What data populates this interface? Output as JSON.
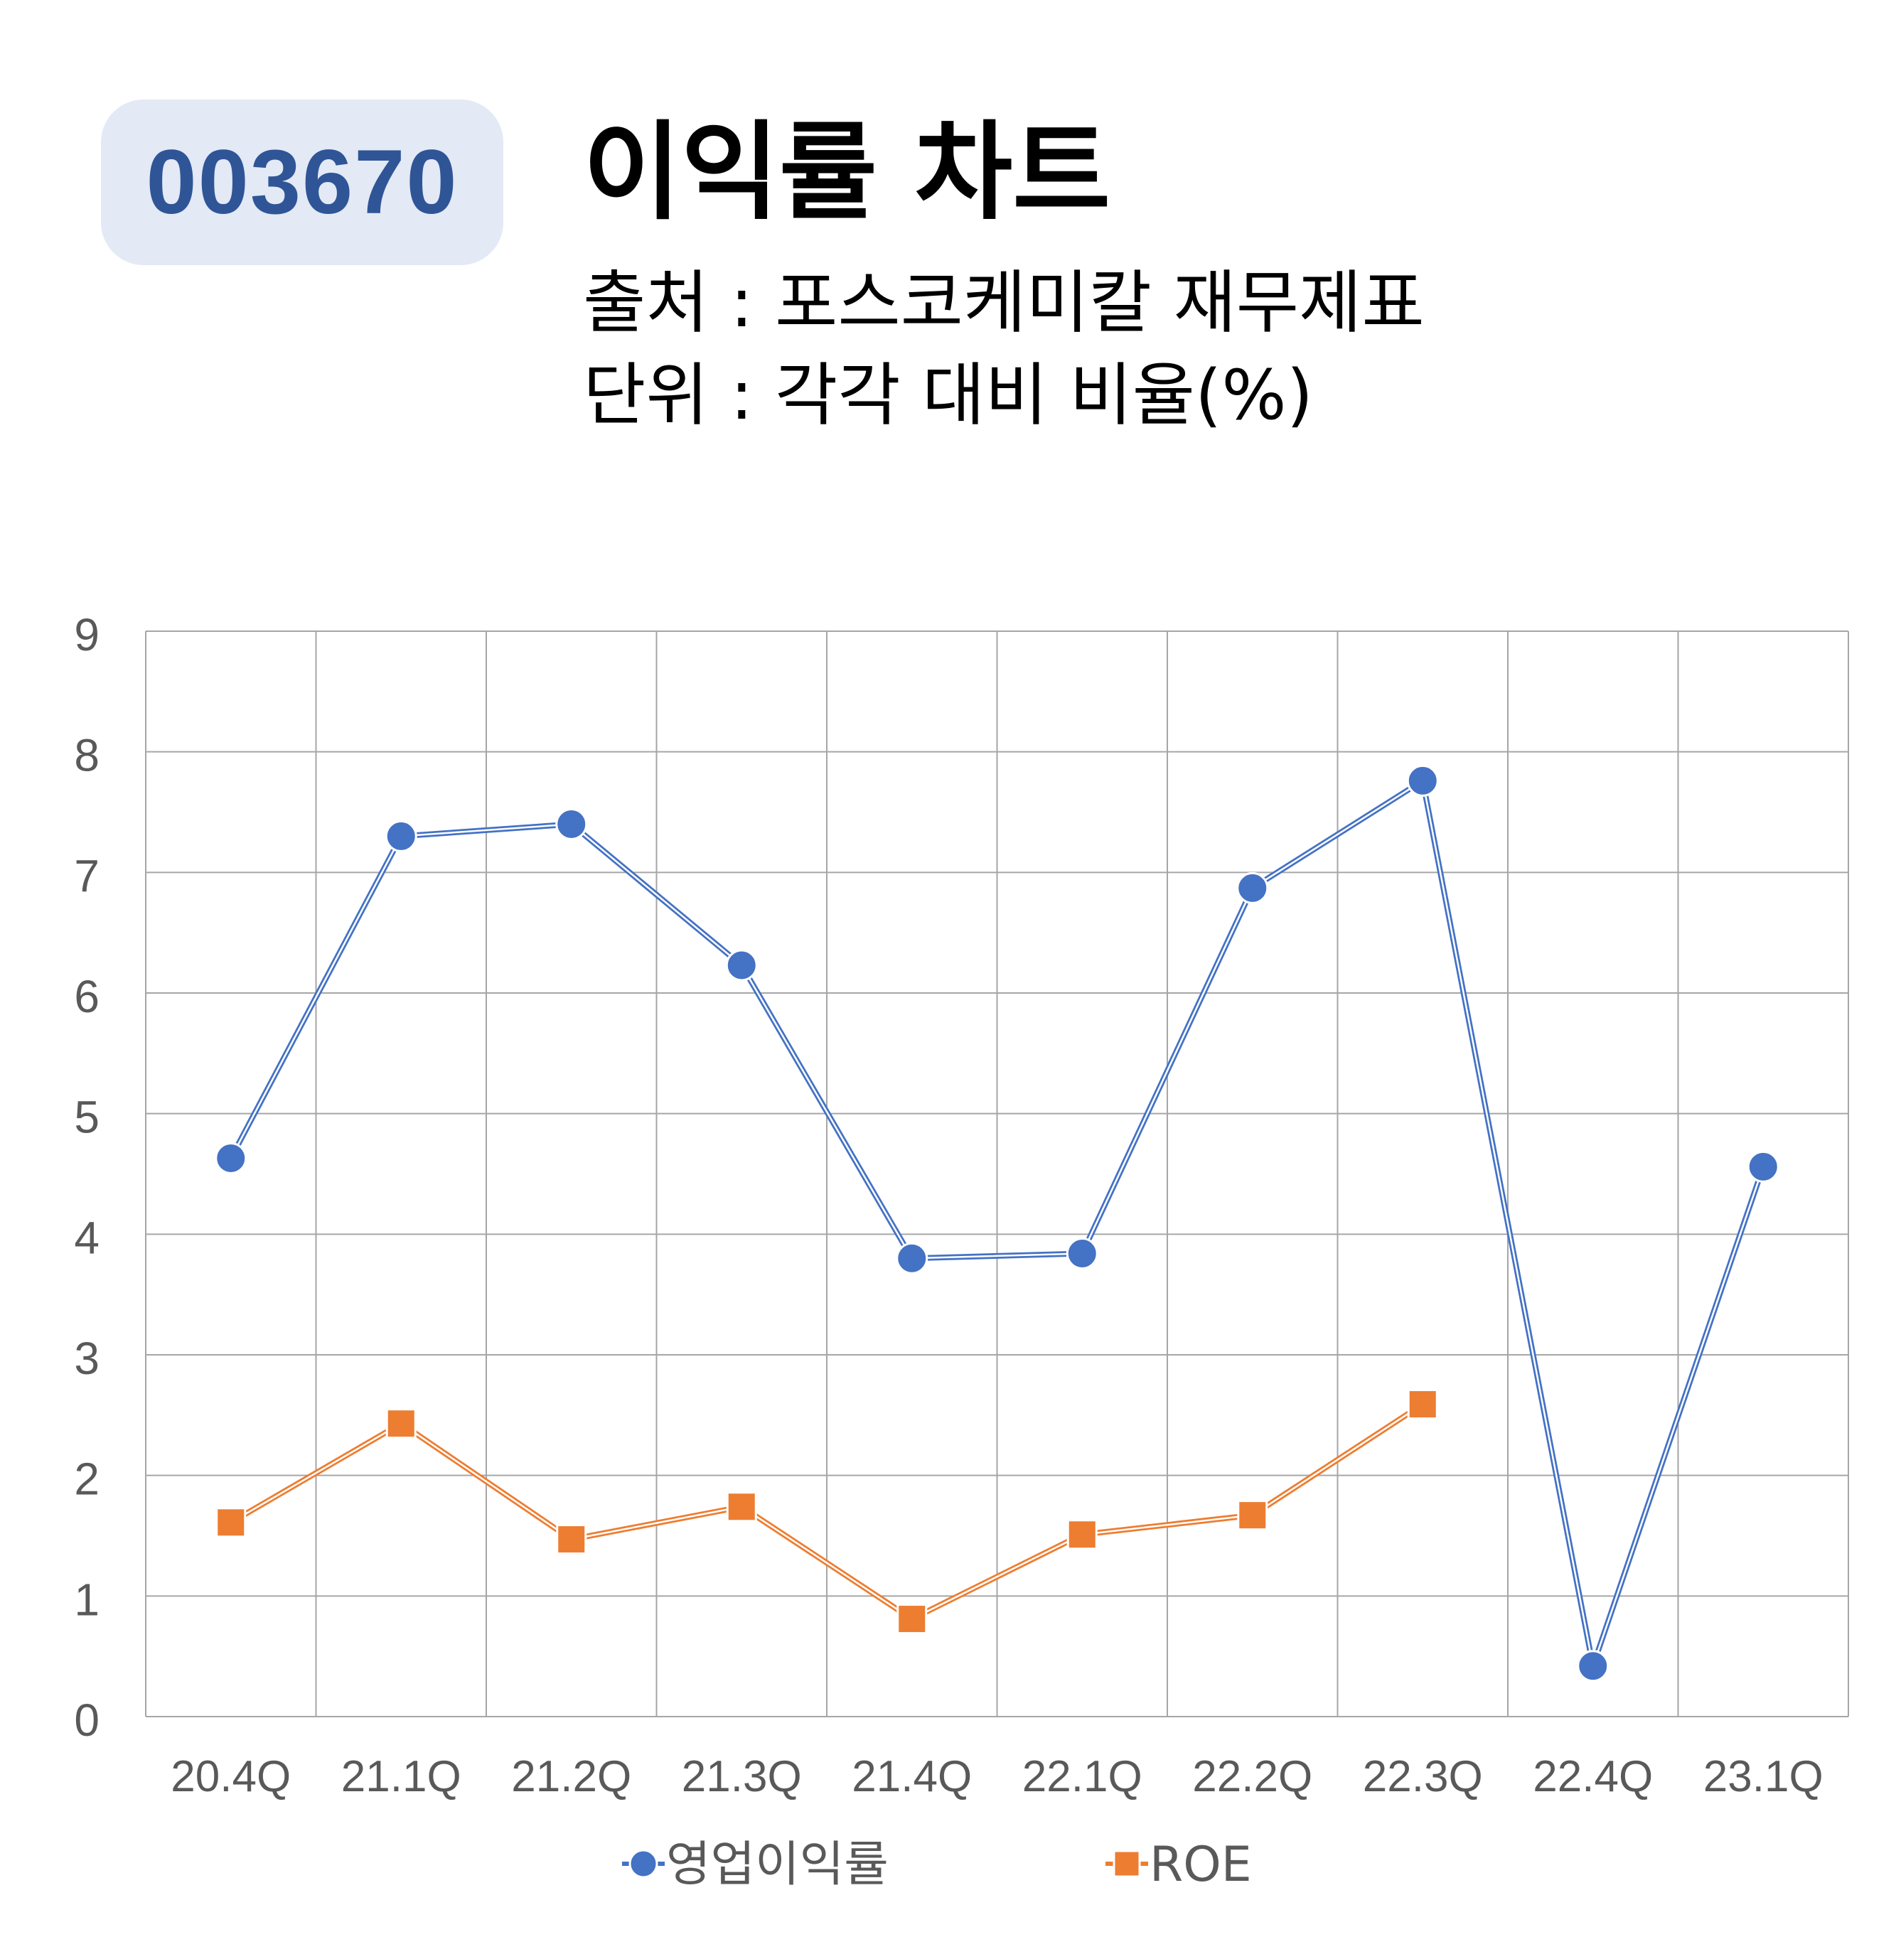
{
  "header": {
    "code": "003670",
    "title": "이익률 차트",
    "source": "출처 : 포스코케미칼 재무제표",
    "unit": "단위 : 각각 대비 비율(%)"
  },
  "chart_data": {
    "type": "line",
    "categories": [
      "20.4Q",
      "21.1Q",
      "21.2Q",
      "21.3Q",
      "21.4Q",
      "22.1Q",
      "22.2Q",
      "22.3Q",
      "22.4Q",
      "23.1Q"
    ],
    "series": [
      {
        "name": "영업이익률",
        "color": "#4472c4",
        "marker": "circle",
        "values": [
          4.63,
          7.3,
          7.4,
          6.23,
          3.8,
          3.84,
          6.87,
          7.76,
          0.42,
          4.56
        ]
      },
      {
        "name": "ROE",
        "color": "#ed7d31",
        "marker": "square",
        "values": [
          1.61,
          2.43,
          1.47,
          1.74,
          0.81,
          1.51,
          1.67,
          2.59,
          null,
          null
        ]
      }
    ],
    "ylim": [
      0,
      9
    ],
    "yticks": [
      0,
      1,
      2,
      3,
      4,
      5,
      6,
      7,
      8,
      9
    ],
    "grid": true,
    "legend": "bottom"
  }
}
